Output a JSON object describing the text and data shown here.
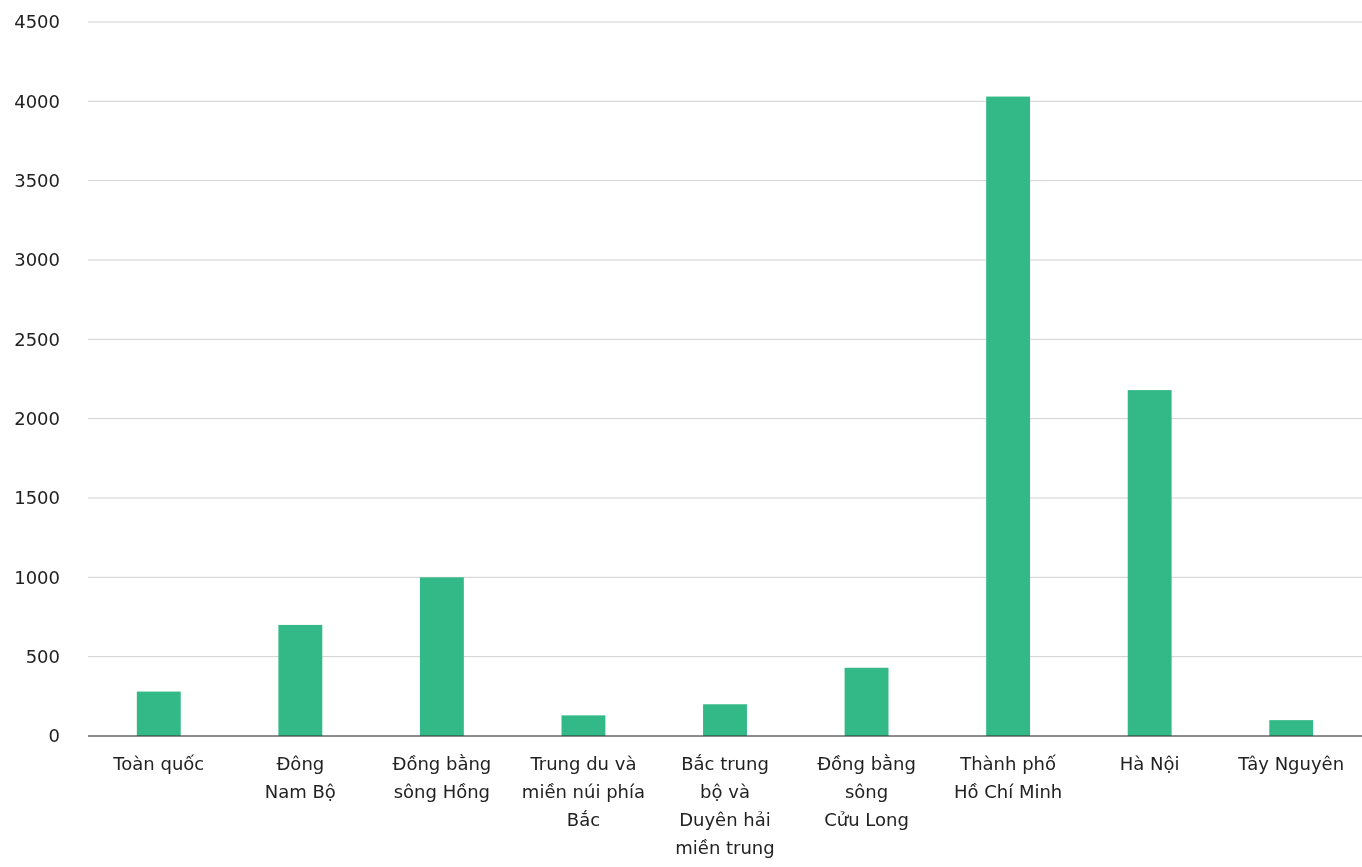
{
  "chart_data": {
    "type": "bar",
    "categories": [
      "Toàn quốc",
      "Đông\nNam Bộ",
      "Đồng bằng\nsông Hồng",
      "Trung du và\nmiền núi phía\nBắc",
      "Bắc trung\nbộ và\nDuyên hải\nmiền trung",
      "Đồng bằng\nsông\nCửu Long",
      "Thành phố\nHồ Chí Minh",
      "Hà Nội",
      "Tây Nguyên"
    ],
    "values": [
      280,
      700,
      1000,
      130,
      200,
      430,
      4030,
      2180,
      100
    ],
    "color": "#32b987",
    "ylim": [
      0,
      4500
    ],
    "yticks": [
      0,
      500,
      1000,
      1500,
      2000,
      2500,
      3000,
      3500,
      4000,
      4500
    ],
    "grid": "y"
  }
}
